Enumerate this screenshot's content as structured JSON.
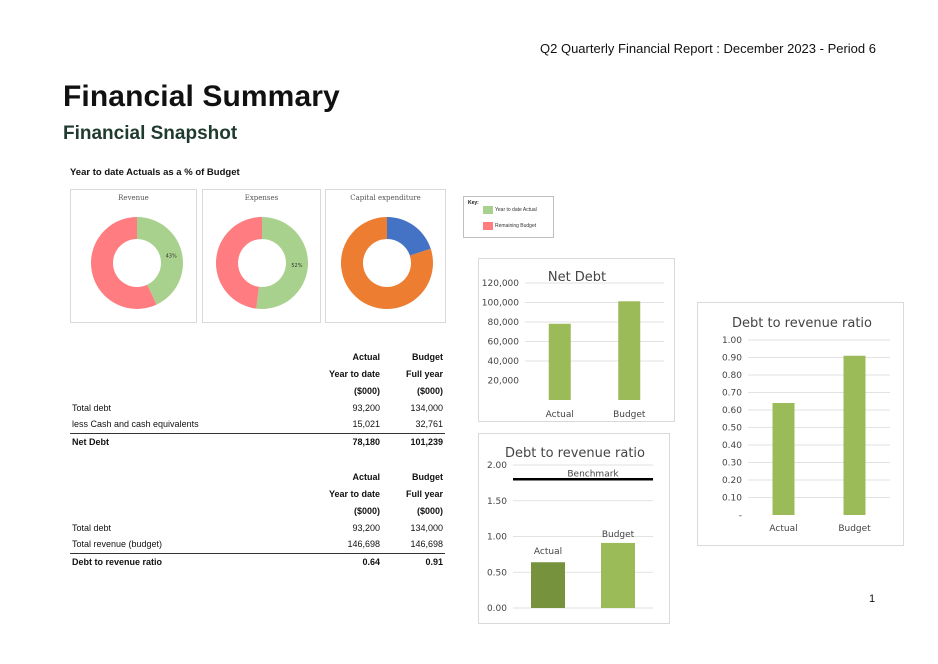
{
  "header": {
    "report_title": "Q2 Quarterly Financial Report : December 2023 - Period 6"
  },
  "title": "Financial Summary",
  "subtitle": "Financial Snapshot",
  "ytd_section_title": "Year to date Actuals as a % of Budget",
  "colors": {
    "actual": "#a9d18e",
    "remaining": "#ff7c80",
    "blue": "#4472c4",
    "orange": "#ed7d31",
    "bar": "#9bbb59",
    "bar_dark": "#76923c"
  },
  "donuts": [
    {
      "title": "Revenue",
      "actual_pct": 43,
      "label": "43%",
      "colors": [
        "#a9d18e",
        "#ff7c80"
      ]
    },
    {
      "title": "Expenses",
      "actual_pct": 52,
      "label": "52%",
      "colors": [
        "#a9d18e",
        "#ff7c80"
      ]
    },
    {
      "title": "Capital expenditure",
      "actual_pct": 20,
      "label": "",
      "colors": [
        "#4472c4",
        "#ed7d31"
      ]
    }
  ],
  "key": {
    "title": "Key:",
    "items": [
      {
        "label": "Year to date Actual",
        "color": "#a9d18e"
      },
      {
        "label": "Remaining Budget",
        "color": "#ff7c80"
      }
    ]
  },
  "table1": {
    "head1": [
      "Actual",
      "Budget"
    ],
    "head2": [
      "Year to date",
      "Full year"
    ],
    "head3": [
      "($000)",
      "($000)"
    ],
    "rows": [
      {
        "label": "Total debt",
        "actual": "93,200",
        "budget": "134,000"
      },
      {
        "label": "less Cash and cash equivalents",
        "actual": "15,021",
        "budget": "32,761"
      }
    ],
    "total": {
      "label": "Net Debt",
      "actual": "78,180",
      "budget": "101,239"
    }
  },
  "table2": {
    "head1": [
      "Actual",
      "Budget"
    ],
    "head2": [
      "Year to date",
      "Full year"
    ],
    "head3": [
      "($000)",
      "($000)"
    ],
    "rows": [
      {
        "label": "Total debt",
        "actual": "93,200",
        "budget": "134,000"
      },
      {
        "label": "Total revenue (budget)",
        "actual": "146,698",
        "budget": "146,698"
      }
    ],
    "total": {
      "label": "Debt to revenue ratio",
      "actual": "0.64",
      "budget": "0.91"
    }
  },
  "chart_data": [
    {
      "type": "bar",
      "title": "Net Debt",
      "categories": [
        "Actual",
        "Budget"
      ],
      "values": [
        78180,
        101239
      ],
      "yticks": [
        "20,000",
        "40,000",
        "60,000",
        "80,000",
        "100,000",
        "120,000"
      ],
      "ylim": [
        0,
        120000
      ],
      "grid": true
    },
    {
      "type": "bar",
      "title": "Debt to revenue ratio",
      "categories": [
        "Actual",
        "Budget"
      ],
      "values": [
        0.64,
        0.91
      ],
      "yticks": [
        "-",
        "0.10",
        "0.20",
        "0.30",
        "0.40",
        "0.50",
        "0.60",
        "0.70",
        "0.80",
        "0.90",
        "1.00"
      ],
      "ylim": [
        0,
        1.0
      ],
      "grid": true
    },
    {
      "type": "bar",
      "title": "Debt to revenue ratio",
      "categories": [
        "Actual",
        "Budget"
      ],
      "values": [
        0.64,
        0.91
      ],
      "yticks": [
        "0.00",
        "0.50",
        "1.00",
        "1.50",
        "2.00"
      ],
      "ylim": [
        0,
        2.0
      ],
      "benchmark": {
        "label": "Benchmark",
        "value": 1.8
      },
      "grid": true
    }
  ],
  "page_number": "1"
}
